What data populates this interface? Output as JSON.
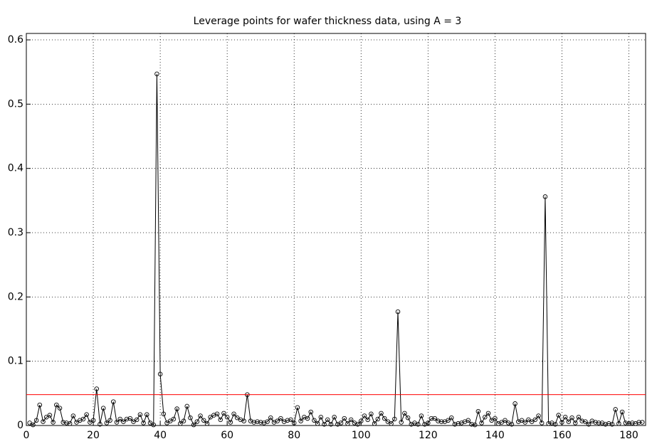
{
  "chart_data": {
    "type": "line",
    "title": "Leverage points for wafer thickness data, using A = 3",
    "x": [
      1,
      2,
      3,
      4,
      5,
      6,
      7,
      8,
      9,
      10,
      11,
      12,
      13,
      14,
      15,
      16,
      17,
      18,
      19,
      20,
      21,
      22,
      23,
      24,
      25,
      26,
      27,
      28,
      29,
      30,
      31,
      32,
      33,
      34,
      35,
      36,
      37,
      38,
      39,
      40,
      41,
      42,
      43,
      44,
      45,
      46,
      47,
      48,
      49,
      50,
      51,
      52,
      53,
      54,
      55,
      56,
      57,
      58,
      59,
      60,
      61,
      62,
      63,
      64,
      65,
      66,
      67,
      68,
      69,
      70,
      71,
      72,
      73,
      74,
      75,
      76,
      77,
      78,
      79,
      80,
      81,
      82,
      83,
      84,
      85,
      86,
      87,
      88,
      89,
      90,
      91,
      92,
      93,
      94,
      95,
      96,
      97,
      98,
      99,
      100,
      101,
      102,
      103,
      104,
      105,
      106,
      107,
      108,
      109,
      110,
      111,
      112,
      113,
      114,
      115,
      116,
      117,
      118,
      119,
      120,
      121,
      122,
      123,
      124,
      125,
      126,
      127,
      128,
      129,
      130,
      131,
      132,
      133,
      134,
      135,
      136,
      137,
      138,
      139,
      140,
      141,
      142,
      143,
      144,
      145,
      146,
      147,
      148,
      149,
      150,
      151,
      152,
      153,
      154,
      155,
      156,
      157,
      158,
      159,
      160,
      161,
      162,
      163,
      164,
      165,
      166,
      167,
      168,
      169,
      170,
      171,
      172,
      173,
      174,
      175,
      176,
      177,
      178,
      179,
      180,
      181,
      182,
      183,
      184
    ],
    "values": [
      0.004,
      0.001,
      0.008,
      0.032,
      0.006,
      0.013,
      0.016,
      0.005,
      0.032,
      0.027,
      0.005,
      0.004,
      0.003,
      0.015,
      0.005,
      0.008,
      0.01,
      0.017,
      0.005,
      0.008,
      0.057,
      0.002,
      0.027,
      0.004,
      0.008,
      0.037,
      0.005,
      0.01,
      0.006,
      0.01,
      0.011,
      0.006,
      0.009,
      0.017,
      0.004,
      0.017,
      0.004,
      0.001,
      0.547,
      0.08,
      0.018,
      0.004,
      0.007,
      0.01,
      0.026,
      0.003,
      0.007,
      0.03,
      0.012,
      0.001,
      0.006,
      0.015,
      0.008,
      0.003,
      0.013,
      0.016,
      0.018,
      0.009,
      0.019,
      0.013,
      0.005,
      0.018,
      0.012,
      0.009,
      0.007,
      0.048,
      0.007,
      0.005,
      0.006,
      0.005,
      0.004,
      0.006,
      0.012,
      0.005,
      0.007,
      0.011,
      0.006,
      0.008,
      0.009,
      0.004,
      0.028,
      0.007,
      0.013,
      0.011,
      0.021,
      0.008,
      0.003,
      0.013,
      0.002,
      0.009,
      0.002,
      0.013,
      0.002,
      0.004,
      0.011,
      0.003,
      0.009,
      0.004,
      0.002,
      0.007,
      0.015,
      0.009,
      0.018,
      0.003,
      0.01,
      0.019,
      0.011,
      0.006,
      0.003,
      0.01,
      0.177,
      0.005,
      0.019,
      0.012,
      0.002,
      0.004,
      0.002,
      0.015,
      0.002,
      0.004,
      0.011,
      0.011,
      0.007,
      0.006,
      0.006,
      0.008,
      0.012,
      0.002,
      0.003,
      0.004,
      0.006,
      0.008,
      0.002,
      0.001,
      0.022,
      0.004,
      0.013,
      0.019,
      0.008,
      0.011,
      0.003,
      0.005,
      0.008,
      0.004,
      0.002,
      0.034,
      0.006,
      0.008,
      0.005,
      0.009,
      0.006,
      0.009,
      0.015,
      0.004,
      0.356,
      0.003,
      0.004,
      0.002,
      0.016,
      0.005,
      0.013,
      0.006,
      0.012,
      0.004,
      0.013,
      0.007,
      0.006,
      0.002,
      0.007,
      0.005,
      0.004,
      0.004,
      0.002,
      0.003,
      0.002,
      0.025,
      0.003,
      0.021,
      0.004,
      0.003,
      0.004,
      0.003,
      0.005,
      0.005
    ],
    "color": "#000000",
    "marker": "circle",
    "reference_line": {
      "value": 0.048,
      "color": "#ff0000"
    },
    "xlim": [
      0,
      185
    ],
    "xticks": [
      0,
      20,
      40,
      60,
      80,
      100,
      120,
      140,
      160,
      180
    ],
    "ylim": [
      0,
      0.61
    ],
    "yticks": [
      0,
      0.1,
      0.2,
      0.3,
      0.4,
      0.5,
      0.6
    ],
    "grid": true
  }
}
